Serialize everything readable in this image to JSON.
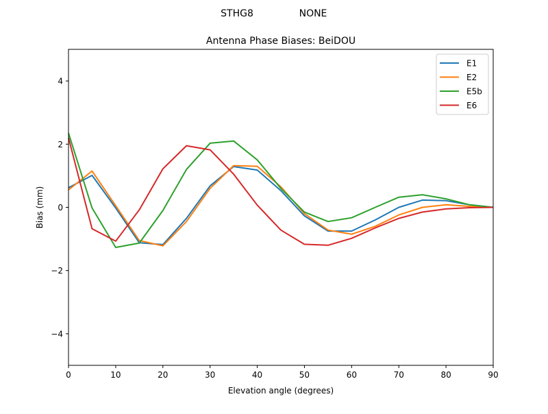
{
  "suptitle": {
    "left": "STHG8",
    "right": "NONE"
  },
  "chart_data": {
    "type": "line",
    "title": "Antenna Phase Biases: BeiDOU",
    "xlabel": "Elevation angle (degrees)",
    "ylabel": "Bias (mm)",
    "xlim": [
      0,
      90
    ],
    "ylim": [
      -5,
      5
    ],
    "xticks": [
      0,
      10,
      20,
      30,
      40,
      50,
      60,
      70,
      80,
      90
    ],
    "yticks": [
      -4,
      -2,
      0,
      2,
      4
    ],
    "ytick_labels": [
      "−4",
      "−2",
      "0",
      "2",
      "4"
    ],
    "grid": false,
    "legend": "top-right",
    "x": [
      0,
      5,
      10,
      15,
      20,
      25,
      30,
      35,
      40,
      45,
      50,
      55,
      60,
      65,
      70,
      75,
      80,
      85,
      90
    ],
    "series": [
      {
        "name": "E1",
        "color": "#1f77b4",
        "values": [
          0.62,
          1.01,
          -0.02,
          -1.12,
          -1.18,
          -0.35,
          0.68,
          1.29,
          1.18,
          0.53,
          -0.27,
          -0.75,
          -0.75,
          -0.4,
          0.0,
          0.23,
          0.21,
          0.08,
          0.0
        ]
      },
      {
        "name": "E2",
        "color": "#ff7f0e",
        "values": [
          0.55,
          1.15,
          0.05,
          -1.05,
          -1.22,
          -0.45,
          0.6,
          1.32,
          1.3,
          0.65,
          -0.2,
          -0.72,
          -0.85,
          -0.6,
          -0.24,
          0.0,
          0.08,
          0.03,
          0.0
        ]
      },
      {
        "name": "E5b",
        "color": "#2ca02c",
        "values": [
          2.35,
          -0.02,
          -1.27,
          -1.13,
          -0.1,
          1.2,
          2.03,
          2.1,
          1.5,
          0.6,
          -0.15,
          -0.45,
          -0.33,
          0.0,
          0.32,
          0.4,
          0.27,
          0.08,
          0.0
        ]
      },
      {
        "name": "E6",
        "color": "#d62728",
        "values": [
          2.2,
          -0.68,
          -1.07,
          -0.08,
          1.22,
          1.95,
          1.82,
          1.05,
          0.07,
          -0.72,
          -1.17,
          -1.2,
          -0.98,
          -0.65,
          -0.35,
          -0.15,
          -0.05,
          -0.01,
          0.0
        ]
      }
    ]
  }
}
